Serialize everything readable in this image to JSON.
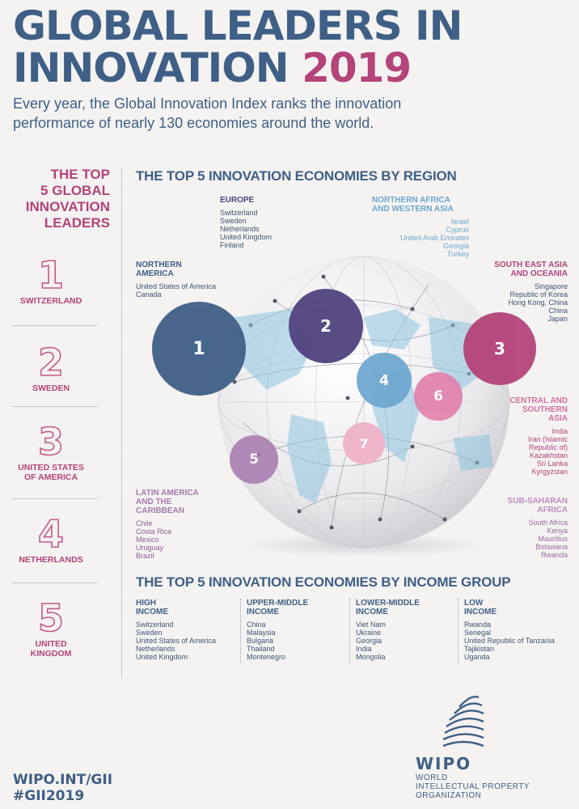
{
  "header": {
    "title_line1": "GLOBAL LEADERS IN",
    "title_line2": "INNOVATION",
    "title_year": "2019",
    "intro": "Every year, the Global Innovation Index ranks the innovation performance of nearly 130 economies around the world."
  },
  "leaders": {
    "heading_lines": [
      "THE TOP",
      "5 GLOBAL",
      "INNOVATION",
      "LEADERS"
    ],
    "items": [
      {
        "rank": "1",
        "name_lines": [
          "SWITZERLAND"
        ]
      },
      {
        "rank": "2",
        "name_lines": [
          "SWEDEN"
        ]
      },
      {
        "rank": "3",
        "name_lines": [
          "UNITED STATES",
          "OF AMERICA"
        ]
      },
      {
        "rank": "4",
        "name_lines": [
          "NETHERLANDS"
        ]
      },
      {
        "rank": "5",
        "name_lines": [
          "UNITED",
          "KINGDOM"
        ]
      }
    ]
  },
  "regions_title": "THE TOP 5 INNOVATION ECONOMIES BY REGION",
  "regions": {
    "northern_america": {
      "heading_lines": [
        "NORTHERN",
        "AMERICA"
      ],
      "items": [
        "United States of America",
        "Canada"
      ],
      "marker": "1",
      "color": "#3f5f86"
    },
    "europe": {
      "heading_lines": [
        "EUROPE"
      ],
      "items": [
        "Switzerland",
        "Sweden",
        "Netherlands",
        "United Kingdom",
        "Finland"
      ],
      "marker": "2",
      "color": "#51427e"
    },
    "south_east_asia": {
      "heading_lines": [
        "SOUTH EAST ASIA",
        "AND OCEANIA"
      ],
      "items": [
        "Singapore",
        "Republic of Korea",
        "Hong Kong, China",
        "China",
        "Japan"
      ],
      "marker": "3",
      "color": "#b4437a"
    },
    "northern_africa": {
      "heading_lines": [
        "NORTHERN AFRICA",
        "AND WESTERN ASIA"
      ],
      "items": [
        "Israel",
        "Cyprus",
        "United Arab Emirates",
        "Georgia",
        "Turkey"
      ],
      "marker": "4",
      "color": "#6ca6cf"
    },
    "latin_america": {
      "heading_lines": [
        "LATIN AMERICA",
        "AND THE",
        "CARIBBEAN"
      ],
      "items": [
        "Chile",
        "Costa Rica",
        "Mexico",
        "Uruguay",
        "Brazil"
      ],
      "marker": "5",
      "color": "#a778ae"
    },
    "central_southern_asia": {
      "heading_lines": [
        "CENTRAL AND",
        "SOUTHERN",
        "ASIA"
      ],
      "items": [
        "India",
        "Iran (Islamic",
        "Republic of)",
        "Kazakhstan",
        "Sri Lanka",
        "Kyrgyzstan"
      ],
      "marker": "6",
      "color": "#e17fac"
    },
    "sub_saharan_africa": {
      "heading_lines": [
        "SUB-SAHARAN",
        "AFRICA"
      ],
      "items": [
        "South Africa",
        "Kenya",
        "Mauritius",
        "Botswana",
        "Rwanda"
      ],
      "marker": "7",
      "color": "#eeb0c8"
    }
  },
  "income_title": "THE TOP 5 INNOVATION ECONOMIES BY INCOME GROUP",
  "income_groups": [
    {
      "heading_lines": [
        "HIGH",
        "INCOME"
      ],
      "items": [
        "Switzerland",
        "Sweden",
        "United States of America",
        "Netherlands",
        "United Kingdom"
      ]
    },
    {
      "heading_lines": [
        "UPPER-MIDDLE",
        "INCOME"
      ],
      "items": [
        "China",
        "Malaysia",
        "Bulgaria",
        "Thailand",
        "Montenegro"
      ]
    },
    {
      "heading_lines": [
        "LOWER-MIDDLE",
        "INCOME"
      ],
      "items": [
        "Viet Nam",
        "Ukraine",
        "Georgia",
        "India",
        "Mongolia"
      ]
    },
    {
      "heading_lines": [
        "LOW",
        "INCOME"
      ],
      "items": [
        "Rwanda",
        "Senegal",
        "United Republic of Tanzania",
        "Tajikistan",
        "Uganda"
      ]
    }
  ],
  "footer": {
    "link1": "WIPO.INT/GII",
    "link2": "#GII2019",
    "logo_word": "WIPO",
    "org_lines": [
      "WORLD",
      "INTELLECTUAL PROPERTY",
      "ORGANIZATION"
    ]
  },
  "icons": {
    "globe": "globe-icon",
    "wipo_logo": "wipo-logo-icon"
  }
}
